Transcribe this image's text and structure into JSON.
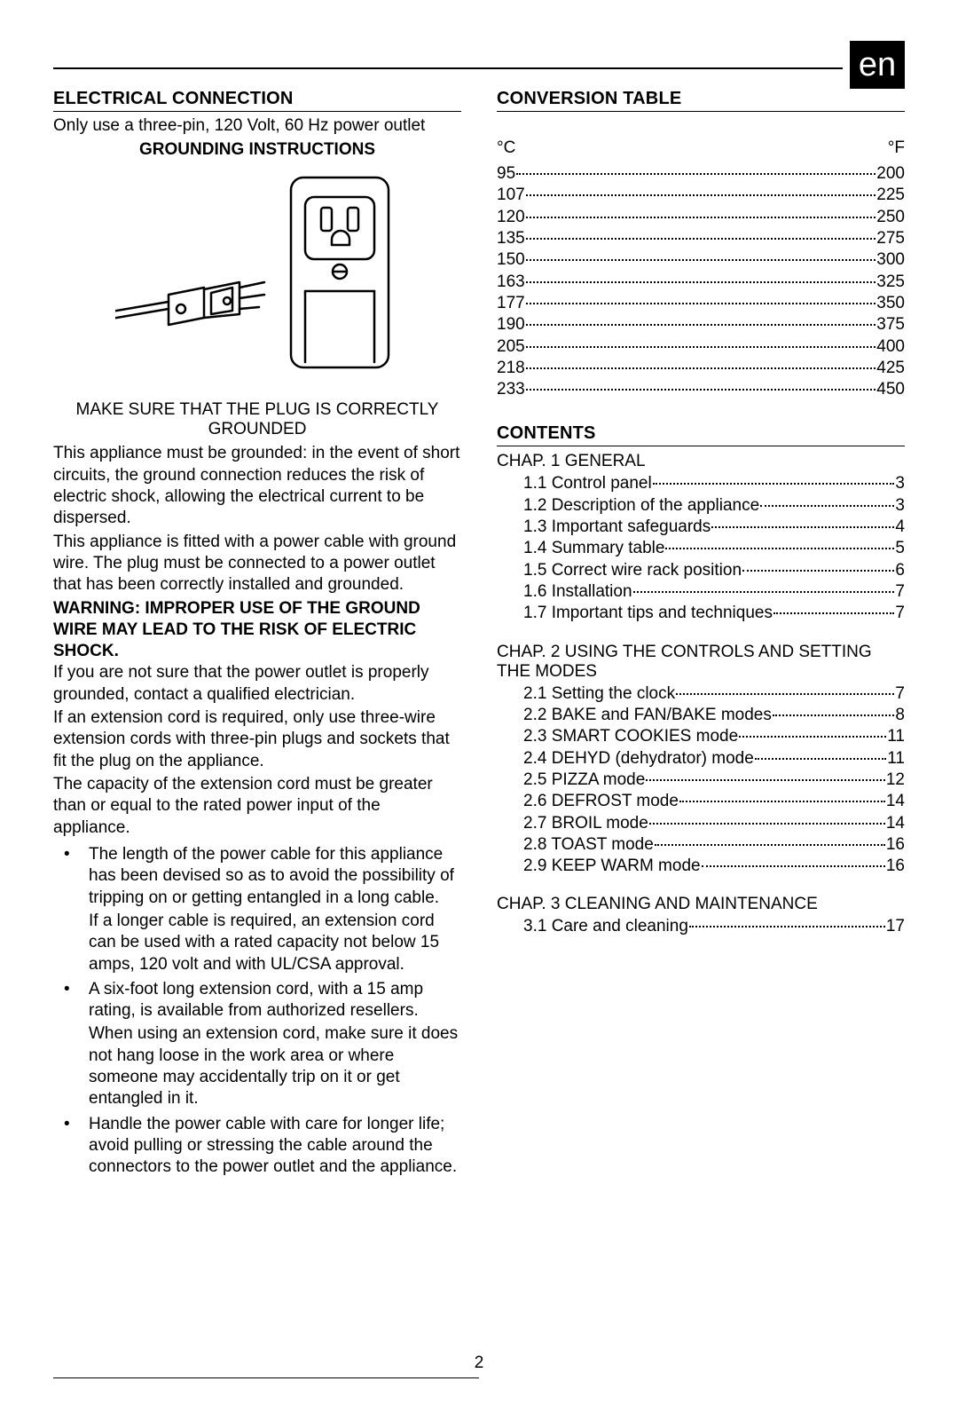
{
  "langBadge": "en",
  "pageNumber": "2",
  "left": {
    "heading": "ELECTRICAL CONNECTION",
    "outletLine": "Only use a three-pin, 120 Volt, 60 Hz power outlet",
    "groundingHeading": "GROUNDING INSTRUCTIONS",
    "caption": "MAKE SURE THAT THE PLUG IS CORRECTLY GROUNDED",
    "para1": "This appliance must be grounded: in the event of short circuits, the ground connection reduces the risk of electric shock, allowing the electrical current to be dispersed.",
    "para2": "This appliance is fitted with a power cable with ground wire. The plug must be connected to a power outlet that has been correctly installed and grounded.",
    "warning": "WARNING: IMPROPER USE OF THE GROUND WIRE MAY LEAD TO THE RISK OF ELECTRIC SHOCK.",
    "para3": "If you are not sure that the power outlet is properly grounded, contact a qualified electrician.",
    "para4": "If an extension cord is required, only use three-wire extension cords with three-pin plugs and sockets that fit the plug on the appliance.",
    "para5": "The capacity of the extension cord must be greater than or equal to the rated power input of the appliance.",
    "bullets": [
      {
        "main": "The length of the power cable for this appliance has been devised so as to avoid the possibility of tripping on or getting entangled in a long cable.",
        "sub": "If a longer cable is required, an extension cord can be used with a rated capacity not below 15 amps, 120 volt and with UL/CSA approval."
      },
      {
        "main": "A six-foot long extension cord, with a 15 amp rating, is available from authorized resellers.",
        "sub": "When using an extension cord, make sure it does not hang loose in the work area or where someone may accidentally trip on it or get entangled in it."
      },
      {
        "main": "Handle the power cable with care for longer life; avoid pulling or stressing the cable around the connectors to the power outlet and the appliance.",
        "sub": ""
      }
    ]
  },
  "right": {
    "convHeading": "CONVERSION TABLE",
    "cLabel": "°C",
    "fLabel": "°F",
    "rows": [
      {
        "c": "95",
        "f": "200"
      },
      {
        "c": "107",
        "f": "225"
      },
      {
        "c": "120",
        "f": "250"
      },
      {
        "c": "135",
        "f": "275"
      },
      {
        "c": "150",
        "f": "300"
      },
      {
        "c": "163",
        "f": "325"
      },
      {
        "c": "177",
        "f": "350"
      },
      {
        "c": "190",
        "f": "375"
      },
      {
        "c": "205",
        "f": "400"
      },
      {
        "c": "218",
        "f": "425"
      },
      {
        "c": "233",
        "f": "450"
      }
    ],
    "contentsHeading": "CONTENTS",
    "chapters": [
      {
        "title": "CHAP. 1   GENERAL",
        "items": [
          {
            "label": "1.1 Control panel",
            "page": "3"
          },
          {
            "label": "1.2 Description of the appliance",
            "page": "3"
          },
          {
            "label": "1.3 Important safeguards ",
            "page": "4"
          },
          {
            "label": "1.4 Summary table ",
            "page": "5"
          },
          {
            "label": "1.5 Correct wire rack position",
            "page": "6"
          },
          {
            "label": "1.6 Installation",
            "page": "7"
          },
          {
            "label": "1.7 Important tips and techniques ",
            "page": "7"
          }
        ]
      },
      {
        "title": "CHAP. 2  USING THE CONTROLS AND SETTING THE MODES",
        "items": [
          {
            "label": "2.1 Setting the clock ",
            "page": "7"
          },
          {
            "label": "2.2 BAKE and FAN/BAKE modes ",
            "page": "8"
          },
          {
            "label": "2.3 SMART COOKIES mode ",
            "page": "11"
          },
          {
            "label": "2.4 DEHYD (dehydrator) mode",
            "page": "11"
          },
          {
            "label": "2.5 PIZZA mode ",
            "page": "12"
          },
          {
            "label": "2.6 DEFROST mode",
            "page": "14"
          },
          {
            "label": "2.7 BROIL mode ",
            "page": "14"
          },
          {
            "label": "2.8 TOAST mode ",
            "page": "16"
          },
          {
            "label": "2.9 KEEP WARM mode",
            "page": "16"
          }
        ]
      },
      {
        "title": "CHAP. 3 CLEANING AND MAINTENANCE",
        "items": [
          {
            "label": "3.1 Care and cleaning",
            "page": "17"
          }
        ]
      }
    ]
  },
  "colors": {
    "text": "#000000",
    "background": "#ffffff",
    "badgeBg": "#000000",
    "badgeText": "#ffffff"
  }
}
